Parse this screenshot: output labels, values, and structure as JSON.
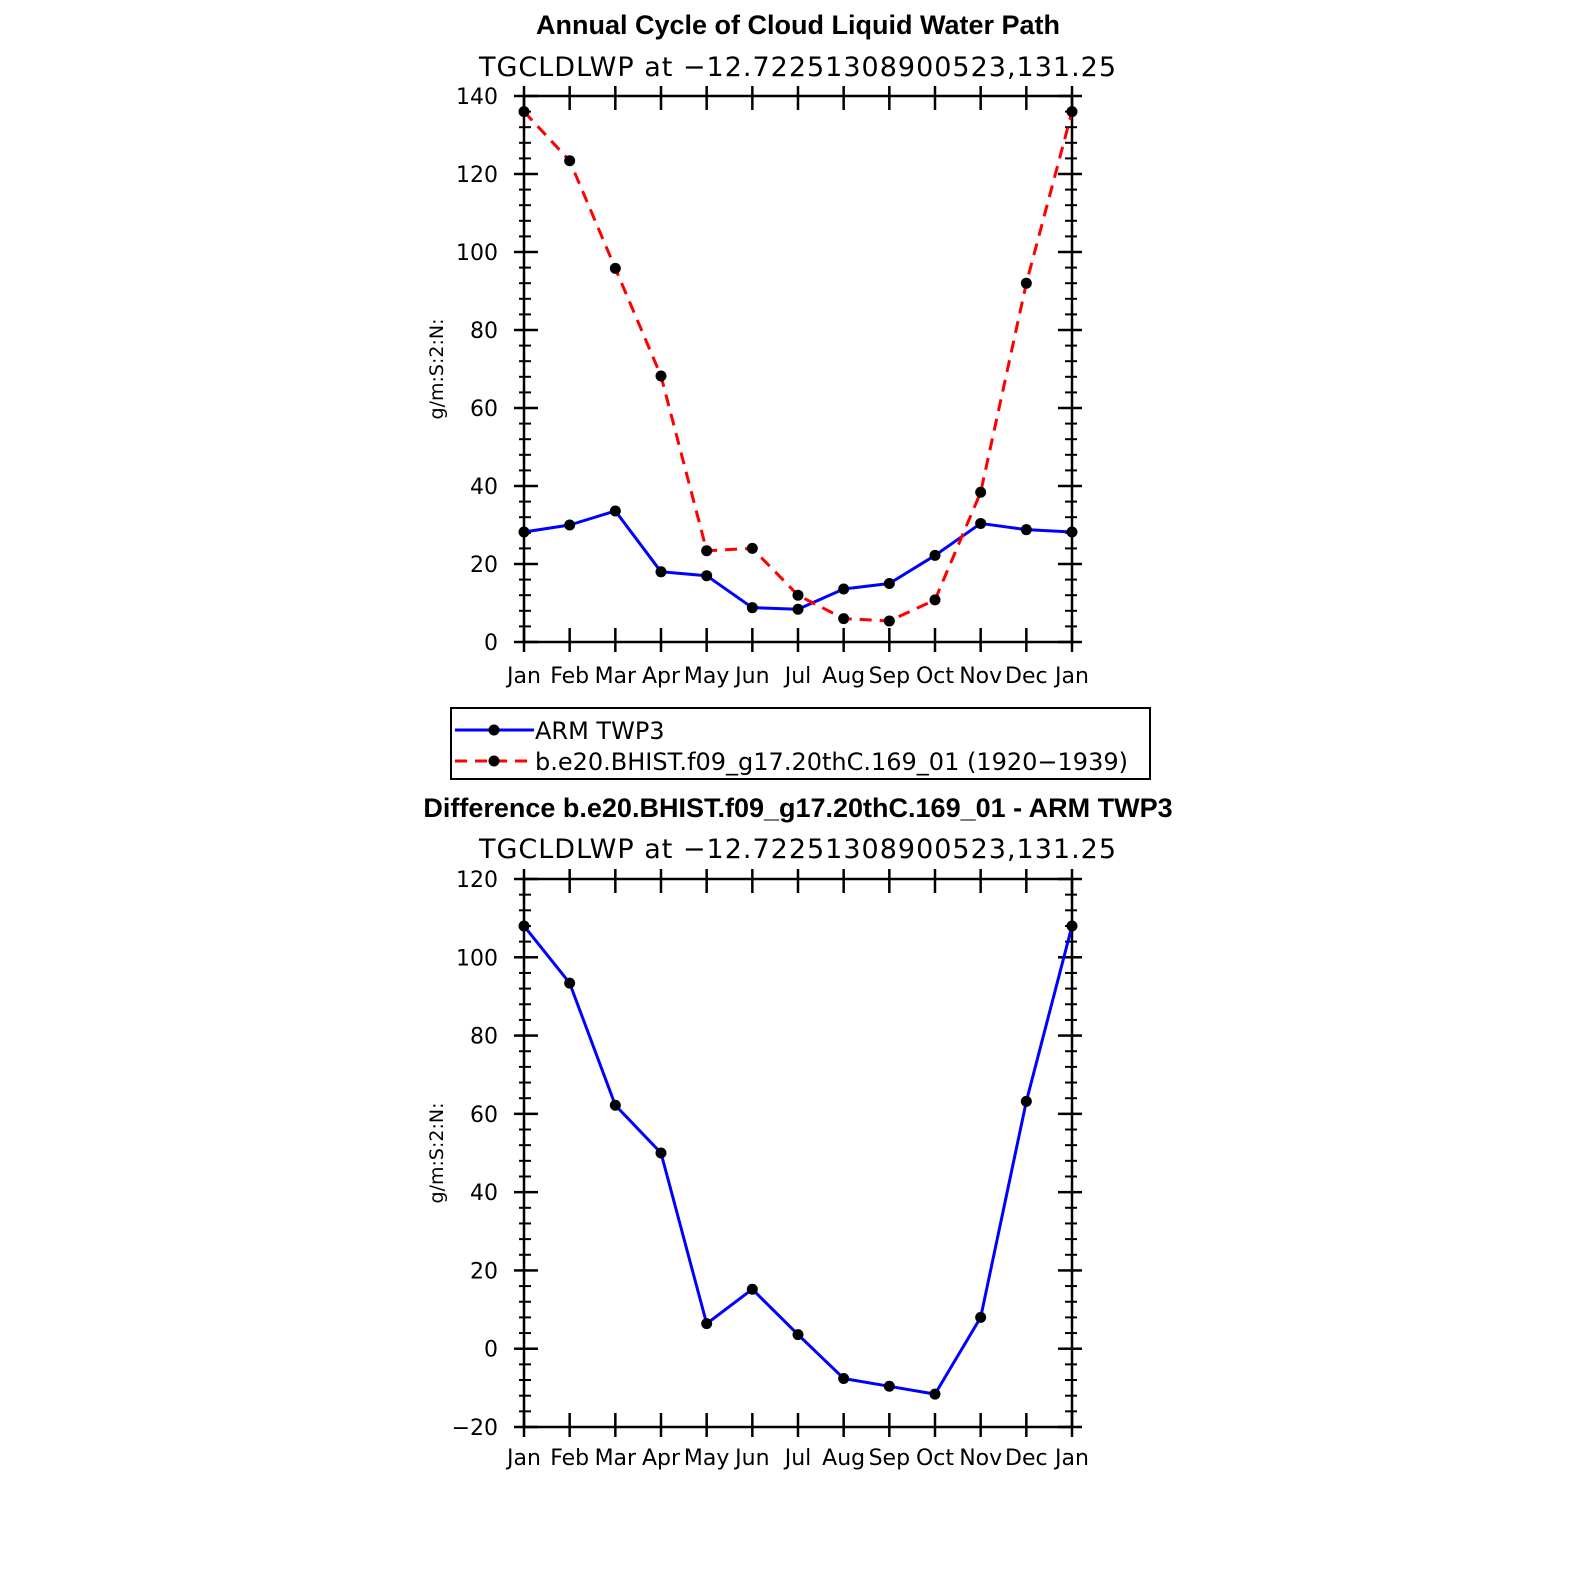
{
  "chart_data": [
    {
      "type": "line",
      "title": "Annual Cycle of Cloud Liquid Water Path",
      "subtitle": "TGCLDLWP  at  −12.72251308900523,131.25",
      "xlabel": "",
      "ylabel": "g/m:S:2:N:",
      "categories": [
        "Jan",
        "Feb",
        "Mar",
        "Apr",
        "May",
        "Jun",
        "Jul",
        "Aug",
        "Sep",
        "Oct",
        "Nov",
        "Dec",
        "Jan"
      ],
      "ylim": [
        0,
        140
      ],
      "yticks": [
        0,
        20,
        40,
        60,
        80,
        100,
        120,
        140
      ],
      "ytick_labels": [
        "0",
        "20",
        "40",
        "60",
        "80",
        "100",
        "120",
        "140"
      ],
      "series": [
        {
          "name": "ARM TWP3",
          "color": "#0000ff",
          "dash": "solid",
          "values": [
            28.2,
            30.0,
            33.6,
            18.0,
            17.0,
            8.8,
            8.4,
            13.6,
            15.0,
            22.2,
            30.4,
            28.8,
            28.2
          ]
        },
        {
          "name": "b.e20.BHIST.f09_g17.20thC.169_01 (1920−1939)",
          "color": "#ff0000",
          "dash": "dashed",
          "values": [
            136.0,
            123.4,
            95.8,
            68.2,
            23.4,
            24.0,
            12.0,
            6.0,
            5.4,
            10.8,
            38.4,
            92.0,
            136.0
          ]
        }
      ]
    },
    {
      "type": "line",
      "title": "Difference b.e20.BHIST.f09_g17.20thC.169_01 - ARM TWP3",
      "subtitle": "TGCLDLWP  at  −12.72251308900523,131.25",
      "xlabel": "",
      "ylabel": "g/m:S:2:N:",
      "categories": [
        "Jan",
        "Feb",
        "Mar",
        "Apr",
        "May",
        "Jun",
        "Jul",
        "Aug",
        "Sep",
        "Oct",
        "Nov",
        "Dec",
        "Jan"
      ],
      "ylim": [
        -20,
        120
      ],
      "yticks": [
        -20,
        0,
        20,
        40,
        60,
        80,
        100,
        120
      ],
      "ytick_labels": [
        "−20",
        "0",
        "20",
        "40",
        "60",
        "80",
        "100",
        "120"
      ],
      "series": [
        {
          "name": "Difference",
          "color": "#0000ff",
          "dash": "solid",
          "values": [
            108.0,
            93.4,
            62.2,
            50.0,
            6.4,
            15.2,
            3.6,
            -7.6,
            -9.6,
            -11.6,
            8.0,
            63.2,
            108.0
          ]
        }
      ]
    }
  ]
}
